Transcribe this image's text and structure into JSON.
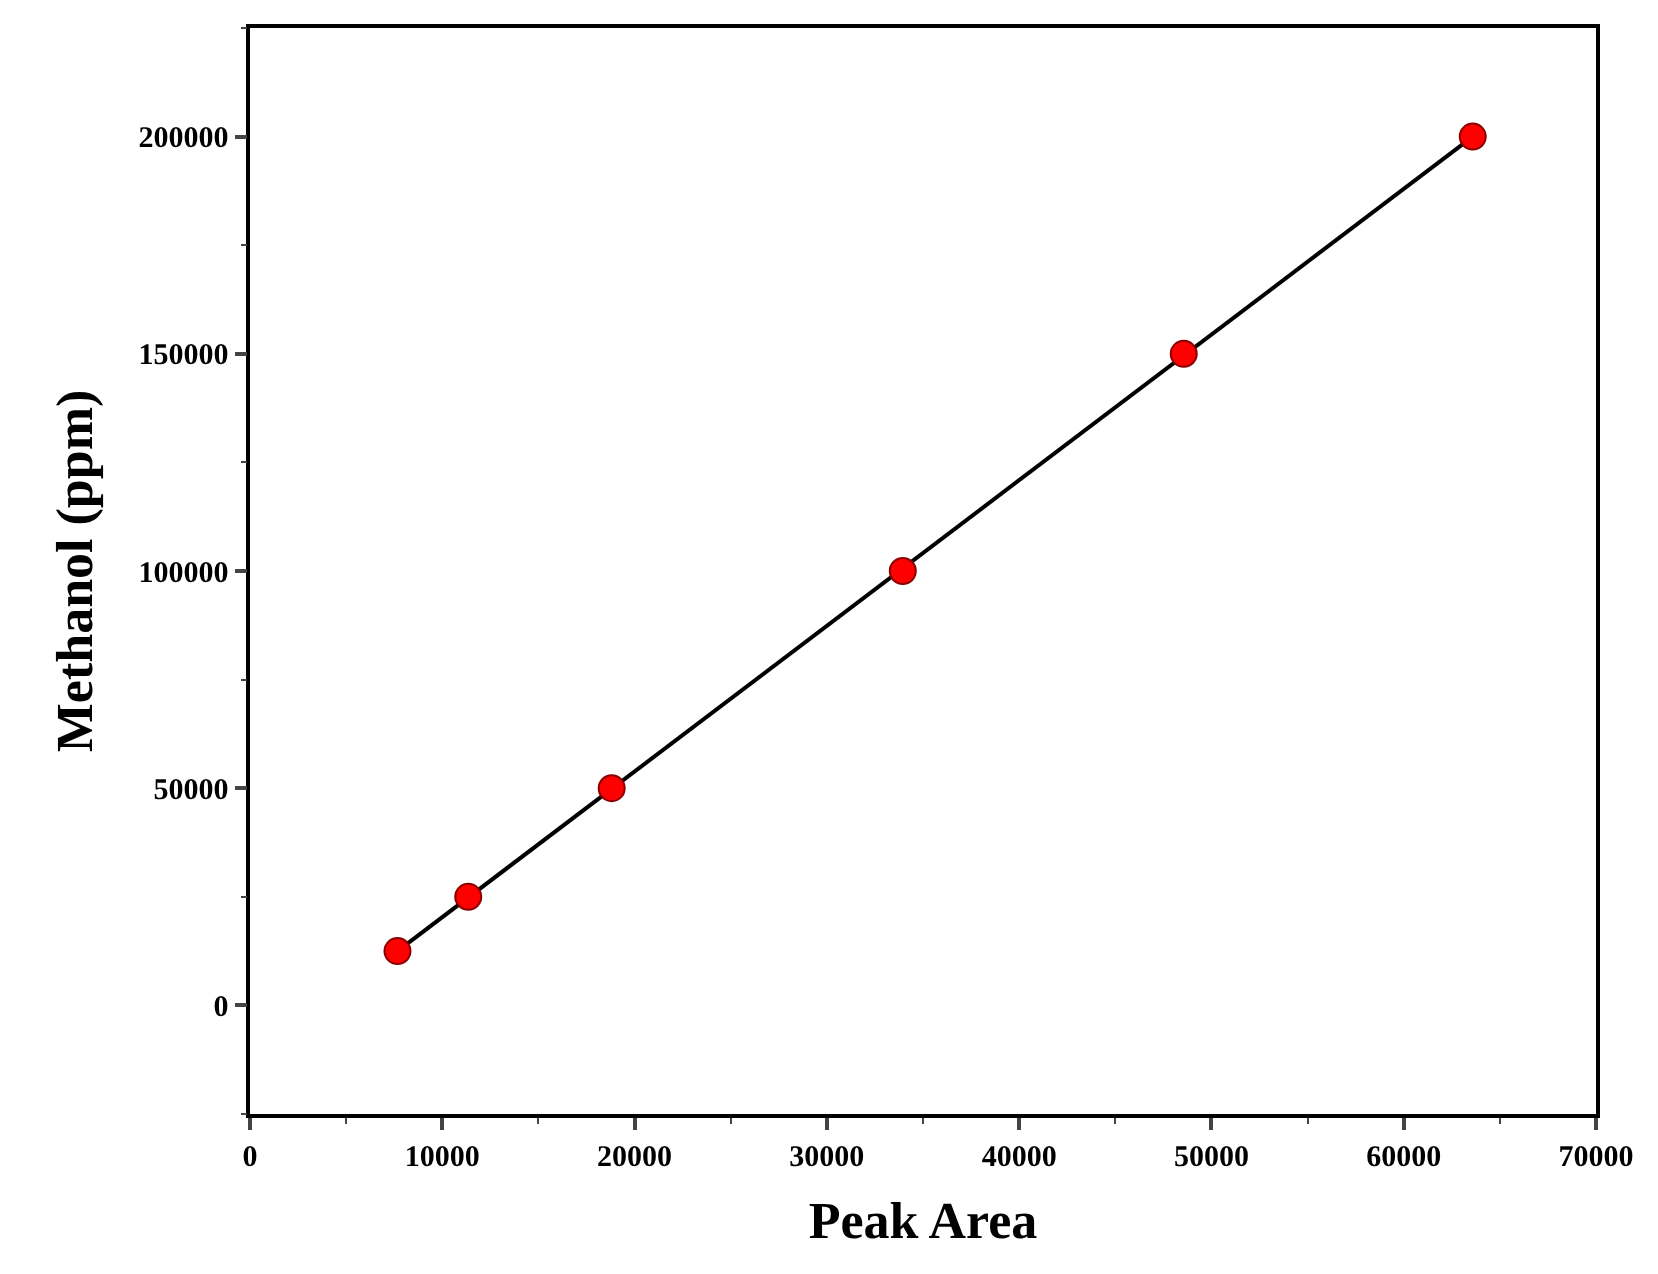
{
  "chart_data": {
    "type": "scatter",
    "xlabel": "Peak Area",
    "ylabel": "Methanol (ppm)",
    "xlim": [
      0,
      70000
    ],
    "xticks": [
      0,
      10000,
      20000,
      30000,
      40000,
      50000,
      60000,
      70000
    ],
    "ylim": [
      -25000,
      225000
    ],
    "yticks": [
      0,
      50000,
      100000,
      150000,
      200000
    ],
    "series": [
      {
        "type": "line",
        "color": "#000000",
        "marker": "none",
        "line_style": "solid",
        "x": [
          7670,
          63590
        ],
        "values": [
          12500,
          200000
        ]
      },
      {
        "color": "#ff0000",
        "marker": "circle",
        "x": [
          7670,
          11350,
          18810,
          33950,
          48560,
          63590
        ],
        "values": [
          12500,
          25000,
          50000,
          100000,
          150000,
          200000
        ]
      }
    ]
  }
}
